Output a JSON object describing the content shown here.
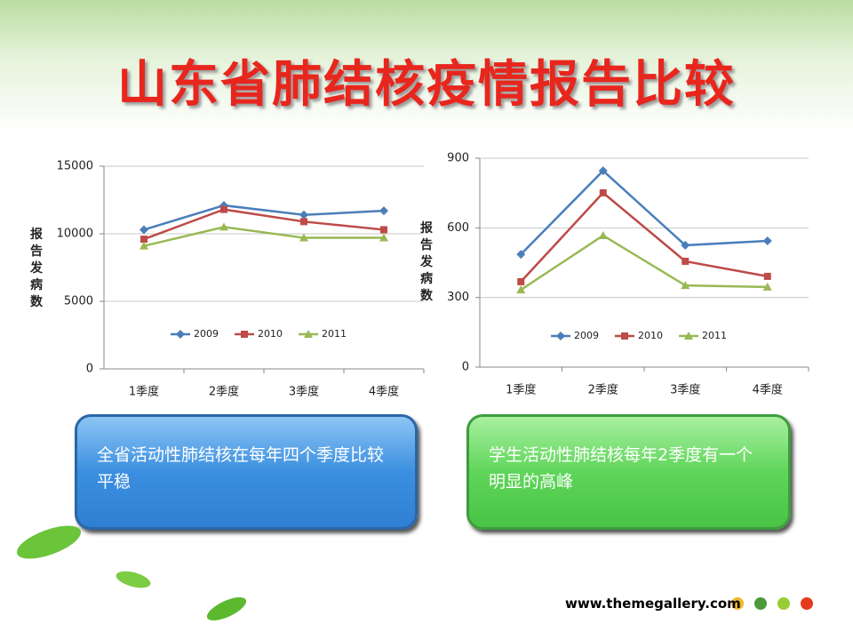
{
  "slide": {
    "title": "山东省肺结核疫情报告比较",
    "callouts": [
      "全省活动性肺结核在每年四个季度比较平稳",
      "学生活动性肺结核每年2季度有一个明显的高峰"
    ],
    "website": "www.themegallery.com"
  },
  "chart_data": [
    {
      "type": "line",
      "y_label": "报告发病数",
      "categories": [
        "1季度",
        "2季度",
        "3季度",
        "4季度"
      ],
      "ylim": [
        0,
        15000
      ],
      "yticks": [
        0,
        5000,
        10000,
        15000
      ],
      "grid": true,
      "series": [
        {
          "name": "2009",
          "color": "#4a7ebb",
          "marker": "diamond",
          "values": [
            10300,
            12100,
            11400,
            11700
          ]
        },
        {
          "name": "2010",
          "color": "#be4b48",
          "marker": "square",
          "values": [
            9600,
            11800,
            10900,
            10300
          ]
        },
        {
          "name": "2011",
          "color": "#98b954",
          "marker": "triangle",
          "values": [
            9100,
            10500,
            9700,
            9700
          ]
        }
      ]
    },
    {
      "type": "line",
      "y_label": "报告发病数",
      "categories": [
        "1季度",
        "2季度",
        "3季度",
        "4季度"
      ],
      "ylim": [
        0,
        900
      ],
      "yticks": [
        0,
        300,
        600,
        900
      ],
      "grid": true,
      "series": [
        {
          "name": "2009",
          "color": "#4a7ebb",
          "marker": "diamond",
          "values": [
            486,
            846,
            525,
            544
          ]
        },
        {
          "name": "2010",
          "color": "#be4b48",
          "marker": "square",
          "values": [
            368,
            751,
            456,
            391
          ]
        },
        {
          "name": "2011",
          "color": "#98b954",
          "marker": "triangle",
          "values": [
            333,
            567,
            352,
            345
          ]
        }
      ]
    }
  ]
}
